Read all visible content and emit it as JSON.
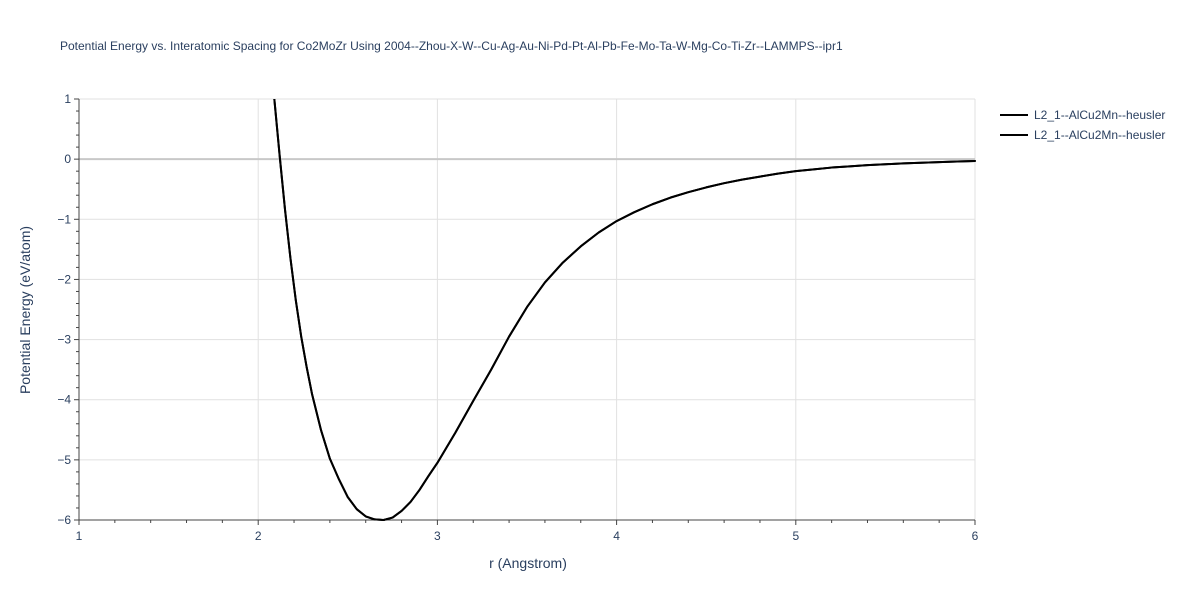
{
  "chart_data": {
    "type": "line",
    "title": "Potential Energy vs. Interatomic Spacing for Co2MoZr Using 2004--Zhou-X-W--Cu-Ag-Au-Ni-Pd-Pt-Al-Pb-Fe-Mo-Ta-W-Mg-Co-Ti-Zr--LAMMPS--ipr1",
    "xlabel": "r (Angstrom)",
    "ylabel": "Potential Energy (eV/atom)",
    "xlim": [
      1,
      6
    ],
    "ylim": [
      -6,
      1
    ],
    "x_ticks": [
      1,
      2,
      3,
      4,
      5,
      6
    ],
    "y_ticks": [
      1,
      0,
      -1,
      -2,
      -3,
      -4,
      -5,
      -6
    ],
    "x_tick_labels": [
      "1",
      "2",
      "3",
      "4",
      "5",
      "6"
    ],
    "y_tick_labels": [
      "1",
      "0",
      "−1",
      "−2",
      "−3",
      "−4",
      "−5",
      "−6"
    ],
    "grid": true,
    "zero_line": true,
    "legend_position": "top-right",
    "colors": {
      "line": "#000000",
      "grid": "#e1e1e1",
      "zero_line": "#c8c8c8",
      "axis_line": "#444444",
      "text": "#2a3f5f"
    },
    "series": [
      {
        "name": "L2_1--AlCu2Mn--heusler",
        "x": [
          2.09,
          2.12,
          2.15,
          2.18,
          2.21,
          2.24,
          2.27,
          2.3,
          2.35,
          2.4,
          2.45,
          2.5,
          2.55,
          2.6,
          2.65,
          2.7,
          2.75,
          2.8,
          2.85,
          2.9,
          2.95,
          3.0,
          3.1,
          3.2,
          3.3,
          3.4,
          3.5,
          3.6,
          3.7,
          3.8,
          3.9,
          4.0,
          4.1,
          4.2,
          4.3,
          4.4,
          4.5,
          4.6,
          4.7,
          4.8,
          4.9,
          5.0,
          5.1,
          5.2,
          5.3,
          5.4,
          5.5,
          5.6,
          5.7,
          5.8,
          5.9,
          6.0
        ],
        "y": [
          1.0,
          0.05,
          -0.85,
          -1.65,
          -2.35,
          -2.95,
          -3.45,
          -3.9,
          -4.5,
          -4.98,
          -5.32,
          -5.62,
          -5.82,
          -5.94,
          -5.99,
          -6.0,
          -5.96,
          -5.85,
          -5.7,
          -5.5,
          -5.27,
          -5.05,
          -4.55,
          -4.02,
          -3.5,
          -2.95,
          -2.46,
          -2.05,
          -1.72,
          -1.45,
          -1.22,
          -1.03,
          -0.88,
          -0.75,
          -0.64,
          -0.55,
          -0.47,
          -0.4,
          -0.34,
          -0.29,
          -0.24,
          -0.2,
          -0.17,
          -0.14,
          -0.12,
          -0.1,
          -0.085,
          -0.07,
          -0.06,
          -0.05,
          -0.04,
          -0.03
        ]
      },
      {
        "name": "L2_1--AlCu2Mn--heusler",
        "x": [
          2.09,
          2.12,
          2.15,
          2.18,
          2.21,
          2.24,
          2.27,
          2.3,
          2.35,
          2.4,
          2.45,
          2.5,
          2.55,
          2.6,
          2.65,
          2.7,
          2.75,
          2.8,
          2.85,
          2.9,
          2.95,
          3.0,
          3.1,
          3.2,
          3.3,
          3.4,
          3.5,
          3.6,
          3.7,
          3.8,
          3.9,
          4.0,
          4.1,
          4.2,
          4.3,
          4.4,
          4.5,
          4.6,
          4.7,
          4.8,
          4.9,
          5.0,
          5.1,
          5.2,
          5.3,
          5.4,
          5.5,
          5.6,
          5.7,
          5.8,
          5.9,
          6.0
        ],
        "y": [
          1.0,
          0.05,
          -0.85,
          -1.65,
          -2.35,
          -2.95,
          -3.45,
          -3.9,
          -4.5,
          -4.98,
          -5.32,
          -5.62,
          -5.82,
          -5.94,
          -5.99,
          -6.0,
          -5.96,
          -5.85,
          -5.7,
          -5.5,
          -5.27,
          -5.05,
          -4.55,
          -4.02,
          -3.5,
          -2.95,
          -2.46,
          -2.05,
          -1.72,
          -1.45,
          -1.22,
          -1.03,
          -0.88,
          -0.75,
          -0.64,
          -0.55,
          -0.47,
          -0.4,
          -0.34,
          -0.29,
          -0.24,
          -0.2,
          -0.17,
          -0.14,
          -0.12,
          -0.1,
          -0.085,
          -0.07,
          -0.06,
          -0.05,
          -0.04,
          -0.03
        ]
      }
    ]
  }
}
